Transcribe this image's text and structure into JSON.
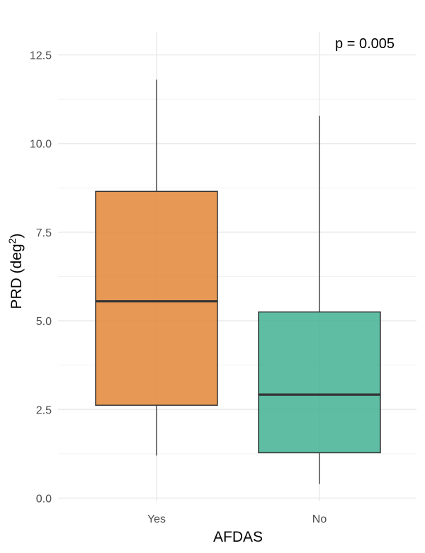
{
  "chart_data": {
    "type": "boxplot",
    "xlabel": "AFDAS",
    "ylabel_main": "PRD (deg",
    "ylabel_sup": "2",
    "ylabel_close": ")",
    "ylim": [
      -0.1,
      13.1
    ],
    "yticks": [
      0.0,
      2.5,
      5.0,
      7.5,
      10.0,
      12.5
    ],
    "ytick_labels": [
      "0.0",
      "2.5",
      "5.0",
      "7.5",
      "10.0",
      "12.5"
    ],
    "categories": [
      "Yes",
      "No"
    ],
    "boxes": [
      {
        "category": "Yes",
        "whisker_low": 1.2,
        "q1": 2.62,
        "median": 5.55,
        "q3": 8.65,
        "whisker_high": 11.8,
        "color": "#E1812E"
      },
      {
        "category": "No",
        "whisker_low": 0.4,
        "q1": 1.28,
        "median": 2.92,
        "q3": 5.25,
        "whisker_high": 10.78,
        "color": "#3AAF8E"
      }
    ],
    "annotation": "p = 0.005",
    "grid": true
  }
}
